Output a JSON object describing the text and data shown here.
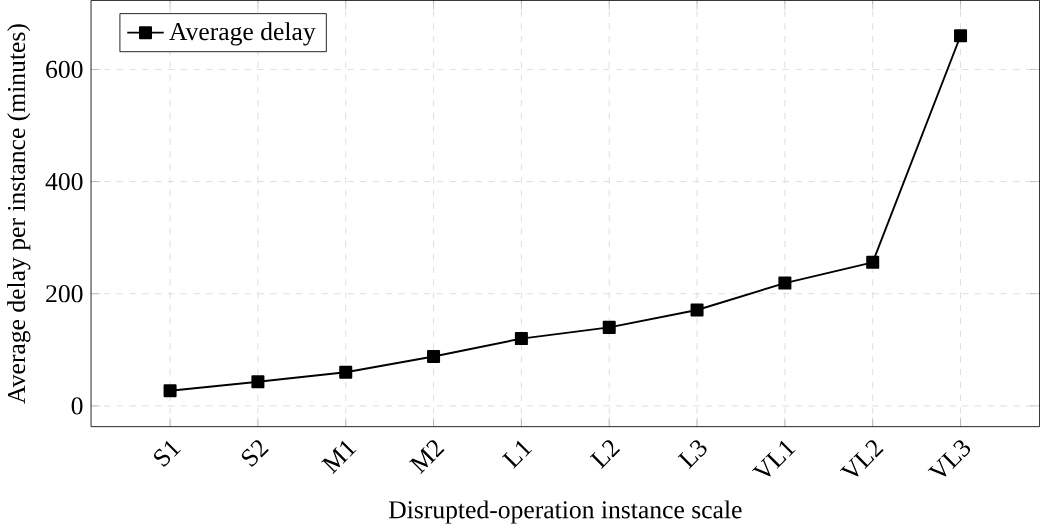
{
  "chart_data": {
    "type": "line",
    "xlabel": "Disrupted-operation instance scale",
    "ylabel": "Average delay per instance (minutes)",
    "categories": [
      "S1",
      "S2",
      "M1",
      "M2",
      "L1",
      "L2",
      "L3",
      "VL1",
      "VL2",
      "VL3"
    ],
    "series": [
      {
        "name": "Average delay",
        "color": "#000000",
        "values": [
          27,
          43,
          60,
          88,
          120,
          140,
          171,
          219,
          256,
          660
        ]
      }
    ],
    "ylim": [
      -37,
      723
    ],
    "yticks": [
      0,
      200,
      400,
      600
    ],
    "grid": true,
    "legend": "top left",
    "marker": "square",
    "line_style": "solid"
  }
}
